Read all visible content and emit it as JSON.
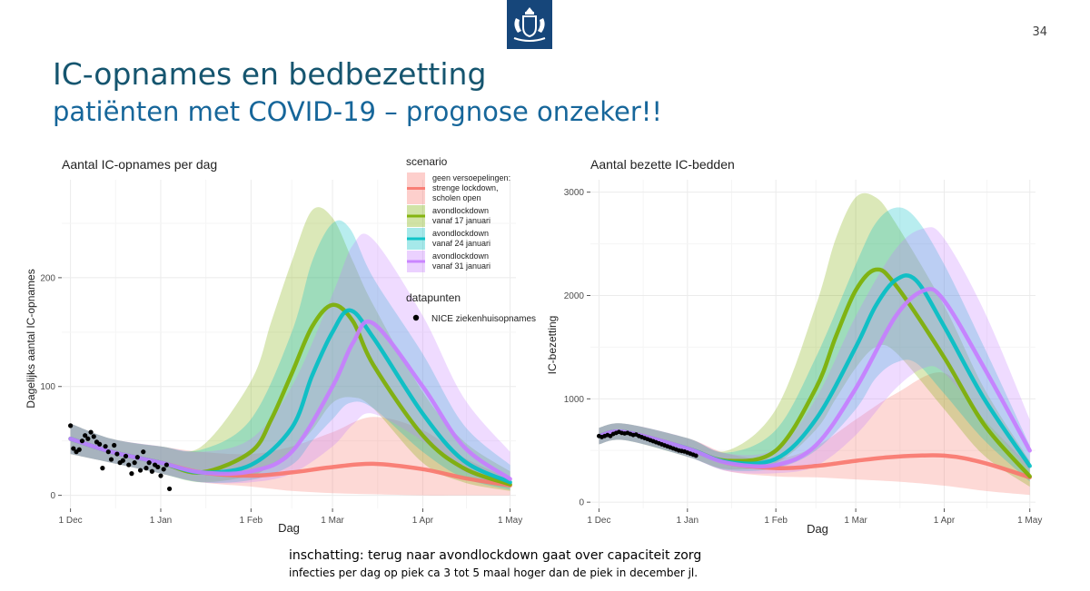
{
  "slide": {
    "page_number": "34",
    "title": "IC-opnames en bedbezetting",
    "subtitle": "patiënten met COVID-19 – prognose onzeker!!",
    "footnote_main": "inschatting: terug naar avondlockdown gaat over capaciteit zorg",
    "footnote_sub": "infecties per dag op piek ca 3 tot 5 maal hoger dan de piek in december jl.",
    "logo_icon": "coat-of-arms-icon",
    "colors": {
      "title": "#15556f",
      "subtitle": "#16669a",
      "logo_bg": "#16467a"
    }
  },
  "legend": {
    "placement": "top-right of left chart",
    "scenario_title": "scenario",
    "datapoints_title": "datapunten",
    "datapoints_label": "NICE ziekenhuisopnames",
    "entries": [
      {
        "lines": [
          "geen versoepelingen:",
          "strenge lockdown,",
          "scholen open"
        ],
        "color": "#f8766d"
      },
      {
        "lines": [
          "avondlockdown",
          "vanaf 17 januari"
        ],
        "color": "#7cae00"
      },
      {
        "lines": [
          "avondlockdown",
          "vanaf 24 januari"
        ],
        "color": "#00bfc4"
      },
      {
        "lines": [
          "avondlockdown",
          "vanaf 31 januari"
        ],
        "color": "#c77cff"
      }
    ]
  },
  "chart_data": [
    {
      "type": "line",
      "title": "Aantal IC-opnames per dag",
      "xlabel": "Dag",
      "ylabel": "Dagelijks aantal IC-opnames",
      "x_unit": "date",
      "xlim": [
        "2020-11-28",
        "2021-05-03"
      ],
      "ylim": [
        -12,
        290
      ],
      "grid": true,
      "x_ticks": [
        {
          "value": "2020-12-01",
          "label": "1 Dec"
        },
        {
          "value": "2021-01-01",
          "label": "1 Jan"
        },
        {
          "value": "2021-02-01",
          "label": "1 Feb"
        },
        {
          "value": "2021-03-01",
          "label": "1 Mar"
        },
        {
          "value": "2021-04-01",
          "label": "1 Apr"
        },
        {
          "value": "2021-05-01",
          "label": "1 May"
        }
      ],
      "y_ticks": [
        0,
        100,
        200
      ],
      "series": [
        {
          "name": "geen versoepelingen: strenge lockdown, scholen open",
          "color": "#f8766d",
          "x": [
            "2020-12-01",
            "2020-12-15",
            "2021-01-01",
            "2021-01-15",
            "2021-02-01",
            "2021-02-15",
            "2021-03-01",
            "2021-03-15",
            "2021-04-01",
            "2021-04-15",
            "2021-05-01"
          ],
          "y": [
            52,
            40,
            30,
            21,
            18,
            21,
            26,
            29,
            24,
            16,
            9
          ],
          "lower": [
            38,
            30,
            20,
            12,
            8,
            4,
            2,
            1,
            0,
            0,
            0
          ],
          "upper": [
            66,
            52,
            45,
            40,
            38,
            45,
            58,
            72,
            60,
            35,
            15
          ]
        },
        {
          "name": "avondlockdown vanaf 17 januari",
          "color": "#7cae00",
          "x": [
            "2020-12-01",
            "2020-12-15",
            "2021-01-01",
            "2021-01-15",
            "2021-02-01",
            "2021-02-08",
            "2021-02-15",
            "2021-02-22",
            "2021-03-01",
            "2021-03-08",
            "2021-03-15",
            "2021-04-01",
            "2021-04-15",
            "2021-05-01"
          ],
          "y": [
            52,
            40,
            30,
            21,
            40,
            70,
            112,
            155,
            175,
            160,
            120,
            55,
            25,
            10
          ],
          "lower": [
            38,
            30,
            20,
            12,
            18,
            28,
            40,
            60,
            85,
            90,
            80,
            30,
            12,
            4
          ],
          "upper": [
            66,
            52,
            45,
            45,
            105,
            160,
            215,
            262,
            255,
            215,
            175,
            95,
            50,
            22
          ]
        },
        {
          "name": "avondlockdown vanaf 24 januari",
          "color": "#00bfc4",
          "x": [
            "2020-12-01",
            "2020-12-15",
            "2021-01-01",
            "2021-01-15",
            "2021-02-01",
            "2021-02-15",
            "2021-02-22",
            "2021-03-01",
            "2021-03-07",
            "2021-03-15",
            "2021-04-01",
            "2021-04-15",
            "2021-05-01"
          ],
          "y": [
            52,
            40,
            30,
            21,
            28,
            62,
            110,
            150,
            170,
            145,
            75,
            32,
            12
          ],
          "lower": [
            38,
            30,
            20,
            12,
            14,
            28,
            50,
            70,
            85,
            80,
            40,
            16,
            5
          ],
          "upper": [
            66,
            52,
            45,
            42,
            70,
            150,
            215,
            250,
            245,
            200,
            130,
            65,
            28
          ]
        },
        {
          "name": "avondlockdown vanaf 31 januari",
          "color": "#c77cff",
          "x": [
            "2020-12-01",
            "2020-12-15",
            "2021-01-01",
            "2021-01-15",
            "2021-02-01",
            "2021-02-15",
            "2021-03-01",
            "2021-03-08",
            "2021-03-15",
            "2021-04-01",
            "2021-04-15",
            "2021-05-01"
          ],
          "y": [
            52,
            40,
            30,
            21,
            22,
            40,
            100,
            140,
            158,
            100,
            45,
            15
          ],
          "lower": [
            38,
            30,
            20,
            12,
            12,
            20,
            45,
            65,
            75,
            50,
            22,
            7
          ],
          "upper": [
            66,
            52,
            45,
            40,
            52,
            100,
            185,
            230,
            235,
            165,
            90,
            40
          ]
        }
      ],
      "points": {
        "name": "NICE ziekenhuisopnames",
        "x": [
          "2020-12-01",
          "2020-12-02",
          "2020-12-03",
          "2020-12-04",
          "2020-12-05",
          "2020-12-06",
          "2020-12-07",
          "2020-12-08",
          "2020-12-09",
          "2020-12-10",
          "2020-12-11",
          "2020-12-12",
          "2020-12-13",
          "2020-12-14",
          "2020-12-15",
          "2020-12-16",
          "2020-12-17",
          "2020-12-18",
          "2020-12-19",
          "2020-12-20",
          "2020-12-21",
          "2020-12-22",
          "2020-12-23",
          "2020-12-24",
          "2020-12-25",
          "2020-12-26",
          "2020-12-27",
          "2020-12-28",
          "2020-12-29",
          "2020-12-30",
          "2020-12-31",
          "2021-01-01",
          "2021-01-02",
          "2021-01-03",
          "2021-01-04"
        ],
        "y": [
          64,
          43,
          40,
          42,
          50,
          55,
          52,
          58,
          54,
          49,
          47,
          25,
          45,
          40,
          33,
          46,
          38,
          30,
          32,
          36,
          28,
          20,
          30,
          35,
          23,
          40,
          25,
          30,
          22,
          28,
          26,
          18,
          24,
          28,
          6
        ]
      }
    },
    {
      "type": "line",
      "title": "Aantal bezette IC-bedden",
      "xlabel": "Dag",
      "ylabel": "IC-bezetting",
      "x_unit": "date",
      "xlim": [
        "2020-11-28",
        "2021-05-03"
      ],
      "ylim": [
        -60,
        3120
      ],
      "grid": true,
      "x_ticks": [
        {
          "value": "2020-12-01",
          "label": "1 Dec"
        },
        {
          "value": "2021-01-01",
          "label": "1 Jan"
        },
        {
          "value": "2021-02-01",
          "label": "1 Feb"
        },
        {
          "value": "2021-03-01",
          "label": "1 Mar"
        },
        {
          "value": "2021-04-01",
          "label": "1 Apr"
        },
        {
          "value": "2021-05-01",
          "label": "1 May"
        }
      ],
      "y_ticks": [
        0,
        1000,
        2000,
        3000
      ],
      "series": [
        {
          "name": "geen versoepelingen: strenge lockdown, scholen open",
          "color": "#f8766d",
          "x": [
            "2020-12-01",
            "2020-12-10",
            "2021-01-01",
            "2021-01-15",
            "2021-02-01",
            "2021-02-15",
            "2021-03-01",
            "2021-03-15",
            "2021-04-01",
            "2021-04-15",
            "2021-05-01"
          ],
          "y": [
            640,
            680,
            520,
            380,
            330,
            350,
            400,
            440,
            450,
            380,
            240
          ],
          "lower": [
            560,
            600,
            440,
            300,
            250,
            240,
            220,
            200,
            160,
            110,
            70
          ],
          "upper": [
            720,
            760,
            620,
            470,
            420,
            540,
            800,
            1050,
            1250,
            800,
            350
          ]
        },
        {
          "name": "avondlockdown vanaf 17 januari",
          "color": "#7cae00",
          "x": [
            "2020-12-01",
            "2020-12-10",
            "2021-01-01",
            "2021-01-15",
            "2021-02-01",
            "2021-02-15",
            "2021-02-22",
            "2021-03-01",
            "2021-03-08",
            "2021-03-15",
            "2021-04-01",
            "2021-04-15",
            "2021-05-01"
          ],
          "y": [
            640,
            680,
            520,
            400,
            500,
            1100,
            1600,
            2050,
            2250,
            2100,
            1400,
            750,
            250
          ],
          "lower": [
            560,
            600,
            440,
            320,
            380,
            700,
            1000,
            1300,
            1500,
            1450,
            900,
            450,
            150
          ],
          "upper": [
            720,
            760,
            620,
            500,
            900,
            1900,
            2550,
            2950,
            2950,
            2700,
            1900,
            1100,
            400
          ]
        },
        {
          "name": "avondlockdown vanaf 24 januari",
          "color": "#00bfc4",
          "x": [
            "2020-12-01",
            "2020-12-10",
            "2021-01-01",
            "2021-01-15",
            "2021-02-01",
            "2021-02-15",
            "2021-03-01",
            "2021-03-08",
            "2021-03-15",
            "2021-03-22",
            "2021-04-01",
            "2021-04-15",
            "2021-05-01"
          ],
          "y": [
            640,
            680,
            520,
            390,
            420,
            800,
            1500,
            1900,
            2150,
            2150,
            1700,
            1000,
            350
          ],
          "lower": [
            560,
            600,
            440,
            310,
            330,
            500,
            900,
            1200,
            1350,
            1350,
            1050,
            600,
            200
          ],
          "upper": [
            720,
            760,
            620,
            480,
            700,
            1400,
            2300,
            2700,
            2850,
            2750,
            2300,
            1500,
            550
          ]
        },
        {
          "name": "avondlockdown vanaf 31 januari",
          "color": "#c77cff",
          "x": [
            "2020-12-01",
            "2020-12-10",
            "2021-01-01",
            "2021-01-15",
            "2021-02-01",
            "2021-02-15",
            "2021-03-01",
            "2021-03-15",
            "2021-03-25",
            "2021-04-01",
            "2021-04-15",
            "2021-05-01"
          ],
          "y": [
            640,
            680,
            520,
            380,
            360,
            550,
            1100,
            1800,
            2050,
            1950,
            1300,
            500
          ],
          "lower": [
            560,
            600,
            440,
            300,
            280,
            350,
            650,
            1100,
            1300,
            1250,
            800,
            300
          ],
          "upper": [
            720,
            760,
            620,
            470,
            520,
            1000,
            1800,
            2450,
            2650,
            2550,
            1850,
            800
          ]
        }
      ],
      "points": {
        "name": "NICE ziekenhuisopnames",
        "x": [
          "2020-12-01",
          "2020-12-02",
          "2020-12-03",
          "2020-12-04",
          "2020-12-05",
          "2020-12-06",
          "2020-12-07",
          "2020-12-08",
          "2020-12-09",
          "2020-12-10",
          "2020-12-11",
          "2020-12-12",
          "2020-12-13",
          "2020-12-14",
          "2020-12-15",
          "2020-12-16",
          "2020-12-17",
          "2020-12-18",
          "2020-12-19",
          "2020-12-20",
          "2020-12-21",
          "2020-12-22",
          "2020-12-23",
          "2020-12-24",
          "2020-12-25",
          "2020-12-26",
          "2020-12-27",
          "2020-12-28",
          "2020-12-29",
          "2020-12-30",
          "2020-12-31",
          "2021-01-01",
          "2021-01-02",
          "2021-01-03",
          "2021-01-04"
        ],
        "y": [
          640,
          630,
          640,
          650,
          640,
          660,
          670,
          680,
          670,
          665,
          670,
          660,
          650,
          655,
          640,
          630,
          620,
          610,
          600,
          590,
          580,
          570,
          560,
          550,
          540,
          530,
          520,
          510,
          500,
          495,
          490,
          480,
          470,
          460,
          450
        ]
      }
    }
  ]
}
